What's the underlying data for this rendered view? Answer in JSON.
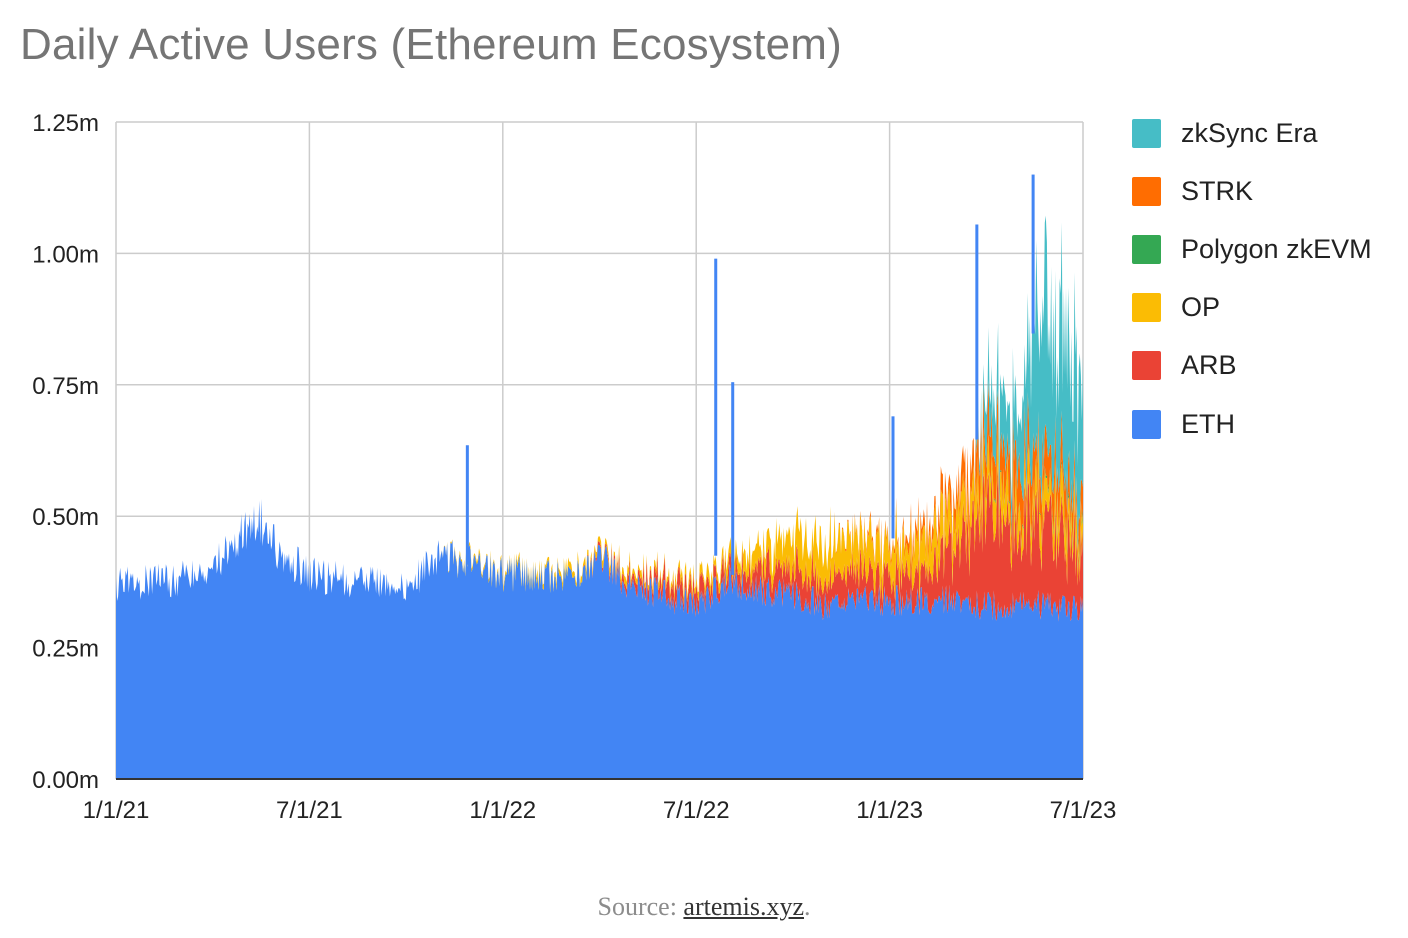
{
  "chart_data": {
    "type": "area",
    "stacked": true,
    "title": "Daily Active Users (Ethereum Ecosystem)",
    "xlabel": "",
    "ylabel": "",
    "ylim": [
      0,
      1250000
    ],
    "y_ticks": [
      "0.00m",
      "0.25m",
      "0.50m",
      "0.75m",
      "1.00m",
      "1.25m"
    ],
    "x_ticks": [
      "1/1/21",
      "7/1/21",
      "1/1/22",
      "7/1/22",
      "1/1/23",
      "7/1/23"
    ],
    "x_range": [
      "2021-01-01",
      "2023-07-01"
    ],
    "grid": true,
    "legend_position": "right",
    "series": [
      {
        "name": "ETH",
        "color": "#4285f4",
        "values": [
          {
            "x": "2021-01-01",
            "y": 370000
          },
          {
            "x": "2021-02-01",
            "y": 375000
          },
          {
            "x": "2021-03-01",
            "y": 380000
          },
          {
            "x": "2021-04-01",
            "y": 395000
          },
          {
            "x": "2021-05-01",
            "y": 470000
          },
          {
            "x": "2021-05-15",
            "y": 500000
          },
          {
            "x": "2021-06-01",
            "y": 440000
          },
          {
            "x": "2021-07-01",
            "y": 390000
          },
          {
            "x": "2021-08-01",
            "y": 380000
          },
          {
            "x": "2021-09-01",
            "y": 375000
          },
          {
            "x": "2021-10-01",
            "y": 365000
          },
          {
            "x": "2021-11-01",
            "y": 420000
          },
          {
            "x": "2021-12-01",
            "y": 420000
          },
          {
            "x": "2022-01-01",
            "y": 390000
          },
          {
            "x": "2022-02-01",
            "y": 390000
          },
          {
            "x": "2022-03-01",
            "y": 380000
          },
          {
            "x": "2022-04-01",
            "y": 420000
          },
          {
            "x": "2022-05-01",
            "y": 370000
          },
          {
            "x": "2022-06-01",
            "y": 350000
          },
          {
            "x": "2022-07-01",
            "y": 330000
          },
          {
            "x": "2022-08-01",
            "y": 380000
          },
          {
            "x": "2022-09-01",
            "y": 360000
          },
          {
            "x": "2022-10-01",
            "y": 350000
          },
          {
            "x": "2022-11-01",
            "y": 330000
          },
          {
            "x": "2022-12-01",
            "y": 340000
          },
          {
            "x": "2023-01-01",
            "y": 340000
          },
          {
            "x": "2023-02-01",
            "y": 340000
          },
          {
            "x": "2023-03-01",
            "y": 340000
          },
          {
            "x": "2023-04-01",
            "y": 330000
          },
          {
            "x": "2023-05-01",
            "y": 330000
          },
          {
            "x": "2023-06-01",
            "y": 330000
          },
          {
            "x": "2023-07-01",
            "y": 320000
          }
        ]
      },
      {
        "name": "ARB",
        "color": "#ea4335",
        "values": [
          {
            "x": "2022-03-15",
            "y": 0
          },
          {
            "x": "2022-05-01",
            "y": 15000
          },
          {
            "x": "2022-06-01",
            "y": 30000
          },
          {
            "x": "2022-07-01",
            "y": 30000
          },
          {
            "x": "2022-08-01",
            "y": 30000
          },
          {
            "x": "2022-09-01",
            "y": 40000
          },
          {
            "x": "2022-10-01",
            "y": 50000
          },
          {
            "x": "2022-11-01",
            "y": 55000
          },
          {
            "x": "2022-12-01",
            "y": 60000
          },
          {
            "x": "2023-01-01",
            "y": 50000
          },
          {
            "x": "2023-02-01",
            "y": 60000
          },
          {
            "x": "2023-03-01",
            "y": 100000
          },
          {
            "x": "2023-04-01",
            "y": 180000
          },
          {
            "x": "2023-05-01",
            "y": 160000
          },
          {
            "x": "2023-06-01",
            "y": 140000
          },
          {
            "x": "2023-07-01",
            "y": 120000
          }
        ]
      },
      {
        "name": "OP",
        "color": "#fbbc04",
        "values": [
          {
            "x": "2021-11-01",
            "y": 0
          },
          {
            "x": "2021-12-01",
            "y": 5000
          },
          {
            "x": "2022-01-01",
            "y": 5000
          },
          {
            "x": "2022-03-01",
            "y": 10000
          },
          {
            "x": "2022-05-01",
            "y": 10000
          },
          {
            "x": "2022-06-01",
            "y": 10000
          },
          {
            "x": "2022-07-01",
            "y": 15000
          },
          {
            "x": "2022-08-01",
            "y": 20000
          },
          {
            "x": "2022-09-01",
            "y": 40000
          },
          {
            "x": "2022-10-01",
            "y": 60000
          },
          {
            "x": "2022-11-01",
            "y": 70000
          },
          {
            "x": "2022-12-01",
            "y": 60000
          },
          {
            "x": "2023-01-01",
            "y": 60000
          },
          {
            "x": "2023-02-01",
            "y": 60000
          },
          {
            "x": "2023-03-01",
            "y": 60000
          },
          {
            "x": "2023-04-01",
            "y": 60000
          },
          {
            "x": "2023-05-01",
            "y": 50000
          },
          {
            "x": "2023-06-01",
            "y": 50000
          },
          {
            "x": "2023-07-01",
            "y": 40000
          }
        ]
      },
      {
        "name": "Polygon zkEVM",
        "color": "#34a853",
        "values": [
          {
            "x": "2023-03-25",
            "y": 0
          },
          {
            "x": "2023-04-01",
            "y": 2000
          },
          {
            "x": "2023-05-01",
            "y": 3000
          },
          {
            "x": "2023-06-01",
            "y": 5000
          },
          {
            "x": "2023-07-01",
            "y": 8000
          }
        ]
      },
      {
        "name": "STRK",
        "color": "#ff6d01",
        "values": [
          {
            "x": "2022-11-01",
            "y": 0
          },
          {
            "x": "2022-12-01",
            "y": 5000
          },
          {
            "x": "2023-01-01",
            "y": 10000
          },
          {
            "x": "2023-02-01",
            "y": 20000
          },
          {
            "x": "2023-03-01",
            "y": 40000
          },
          {
            "x": "2023-04-01",
            "y": 70000
          },
          {
            "x": "2023-05-01",
            "y": 80000
          },
          {
            "x": "2023-06-01",
            "y": 70000
          },
          {
            "x": "2023-07-01",
            "y": 50000
          }
        ]
      },
      {
        "name": "zkSync Era",
        "color": "#46bdc6",
        "values": [
          {
            "x": "2023-03-20",
            "y": 0
          },
          {
            "x": "2023-04-01",
            "y": 80000
          },
          {
            "x": "2023-04-15",
            "y": 100000
          },
          {
            "x": "2023-05-01",
            "y": 80000
          },
          {
            "x": "2023-05-15",
            "y": 250000
          },
          {
            "x": "2023-06-01",
            "y": 280000
          },
          {
            "x": "2023-06-15",
            "y": 250000
          },
          {
            "x": "2023-07-01",
            "y": 200000
          }
        ]
      }
    ],
    "annotations": [
      {
        "label": "spike",
        "x": "2021-11-28",
        "y": 635000
      },
      {
        "label": "spike",
        "x": "2022-07-20",
        "y": 990000
      },
      {
        "label": "spike",
        "x": "2022-08-05",
        "y": 755000
      },
      {
        "label": "spike",
        "x": "2023-01-03",
        "y": 690000
      },
      {
        "label": "spike",
        "x": "2023-03-23",
        "y": 1055000
      },
      {
        "label": "spike",
        "x": "2023-05-15",
        "y": 1150000
      }
    ]
  },
  "legend_order": [
    "zkSync Era",
    "STRK",
    "Polygon zkEVM",
    "OP",
    "ARB",
    "ETH"
  ],
  "source": {
    "prefix": "Source: ",
    "link": "artemis.xyz",
    "suffix": "."
  }
}
